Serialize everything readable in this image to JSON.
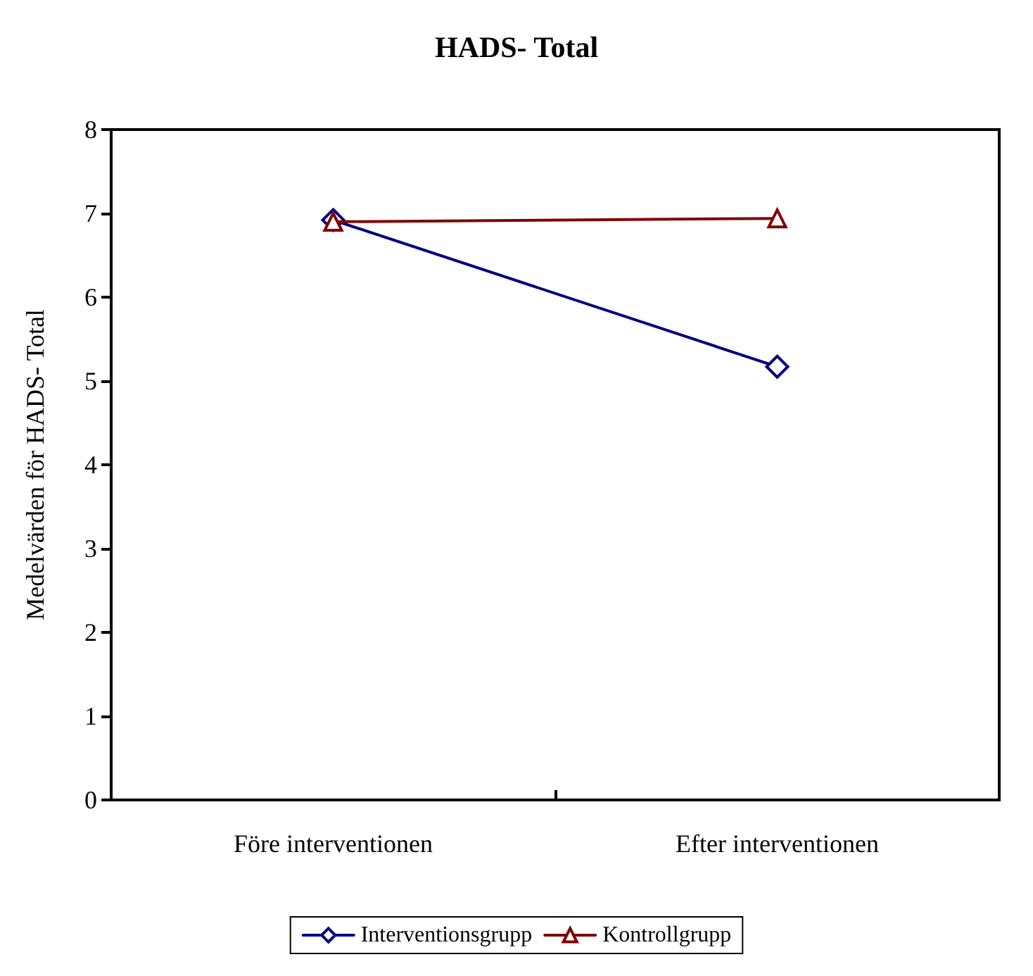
{
  "chart_data": {
    "type": "line",
    "title": "HADS- Total",
    "ylabel": "Medelvärden för HADS- Total",
    "categories": [
      "Före interventionen",
      "Efter interventionen"
    ],
    "series": [
      {
        "name": "Interventionsgrupp",
        "color": "#000080",
        "values": [
          6.92,
          5.17
        ],
        "marker": "diamond"
      },
      {
        "name": "Kontrollgrupp",
        "color": "#800000",
        "values": [
          6.9,
          6.94
        ],
        "marker": "triangle"
      }
    ],
    "ylim": [
      0,
      8
    ],
    "yticks": [
      0,
      1,
      2,
      3,
      4,
      5,
      6,
      7,
      8
    ],
    "grid": false,
    "legend": "bottom",
    "line_style": "solid"
  }
}
